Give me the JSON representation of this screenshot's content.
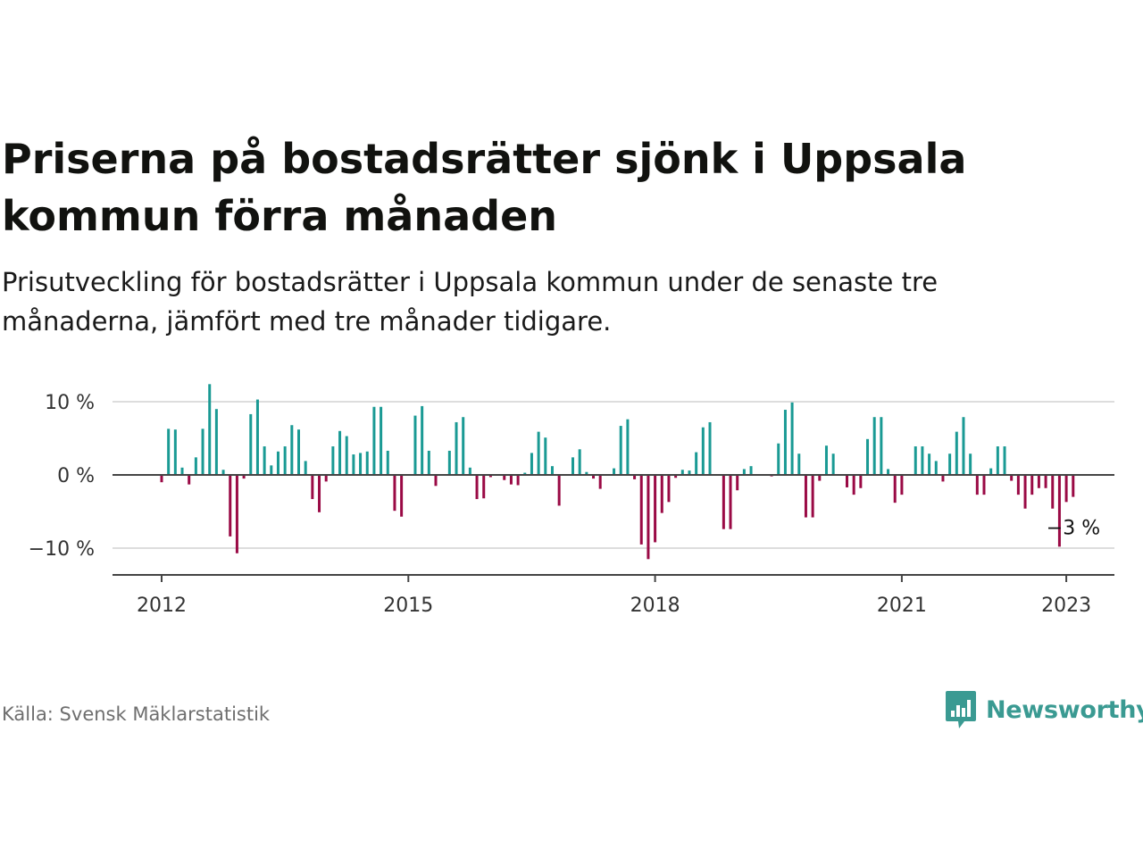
{
  "title": "Priserna på bostadsrätter sjönk i Uppsala kommun förra månaden",
  "subtitle": "Prisutveckling för bostadsrätter i Uppsala kommun under de senaste tre månaderna, jämfört med tre månader tidigare.",
  "source": "Källa: Svensk Mäklarstatistik",
  "brand": {
    "name": "Newsworthy",
    "icon": "newsworthy-logo-icon",
    "color": "#3a9a92"
  },
  "colors": {
    "positive": "#1a9a94",
    "negative": "#9a0a45",
    "axis": "#444444",
    "grid": "#dddddd"
  },
  "chart_data": {
    "type": "bar",
    "x_start": "2012-01",
    "x_end": "2023-02",
    "x_ticks": [
      "2012",
      "2015",
      "2018",
      "2021",
      "2023"
    ],
    "y_ticks": [
      10,
      0,
      -10
    ],
    "y_tick_labels": [
      "10 %",
      "0 %",
      "−10 %"
    ],
    "ylim": [
      -13,
      14
    ],
    "grid": true,
    "annotation": {
      "text": "−3 %",
      "at": "2023-02"
    },
    "series": [
      {
        "values": [
          -1,
          6.3,
          6.2,
          1,
          -1.3,
          2.4,
          6.3,
          12.4,
          9,
          0.7,
          -8.4,
          -10.7,
          -0.5,
          8.3,
          10.3,
          3.9,
          1.3,
          3.2,
          3.9,
          6.8,
          6.2,
          1.9,
          -3.3,
          -5.1,
          -0.9,
          3.9,
          6,
          5.3,
          2.8,
          3,
          3.2,
          9.3,
          9.3,
          3.3,
          -4.9,
          -5.7,
          0,
          8.1,
          9.4,
          3.3,
          -1.5,
          0,
          3.3,
          7.2,
          7.9,
          1,
          -3.3,
          -3.2,
          -0.3,
          0,
          -0.7,
          -1.3,
          -1.4,
          0.3,
          3,
          5.9,
          5.1,
          1.2,
          -4.2,
          0,
          2.4,
          3.5,
          0.4,
          -0.5,
          -1.9,
          0,
          0.9,
          6.7,
          7.6,
          -0.6,
          -9.5,
          -11.5,
          -9.2,
          -5.2,
          -3.7,
          -0.4,
          0.7,
          0.6,
          3.1,
          6.5,
          7.2,
          0,
          -7.4,
          -7.4,
          -2.1,
          0.8,
          1.2,
          0,
          0,
          -0.2,
          4.3,
          8.9,
          9.9,
          2.9,
          -5.8,
          -5.8,
          -0.8,
          4,
          2.9,
          0,
          -1.7,
          -2.7,
          -1.8,
          4.9,
          7.9,
          7.9,
          0.8,
          -3.8,
          -2.7,
          0,
          3.9,
          3.9,
          2.9,
          1.9,
          -0.9,
          2.9,
          5.9,
          7.9,
          2.9,
          -2.7,
          -2.7,
          0.9,
          3.9,
          3.9,
          -0.8,
          -2.7,
          -4.6,
          -2.7,
          -1.8,
          -1.8,
          -4.6,
          -9.8,
          -3.7,
          -3
        ]
      }
    ]
  }
}
